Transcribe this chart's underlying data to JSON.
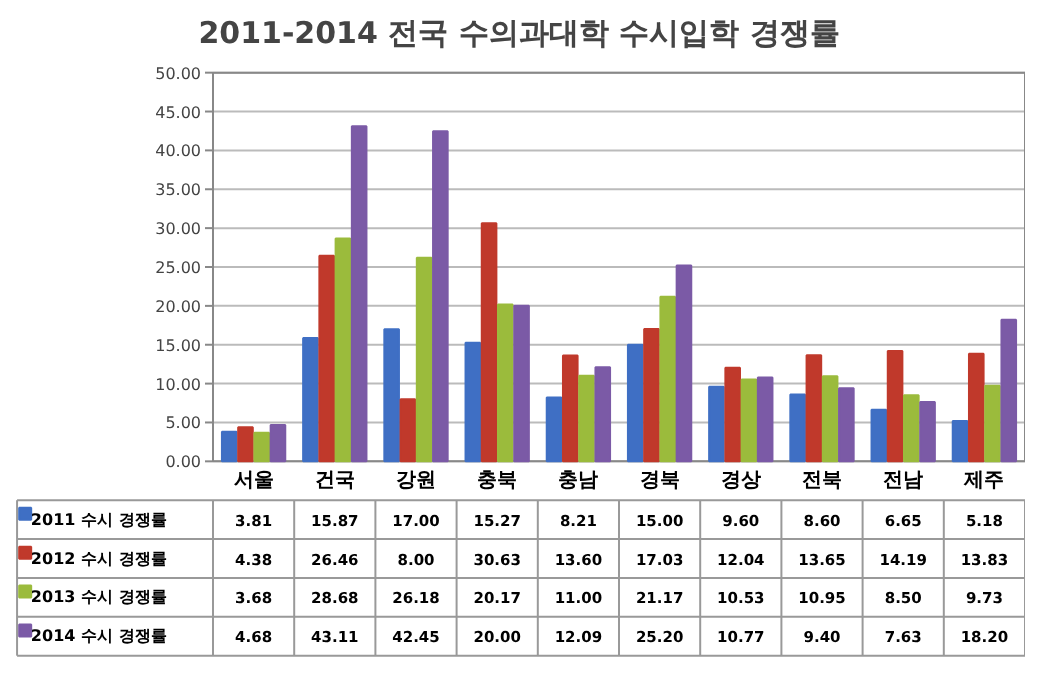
{
  "chart_data": {
    "type": "bar",
    "title": "2011-2014 전국 수의과대학 수시입학 경쟁률",
    "categories": [
      "서울",
      "건국",
      "강원",
      "충북",
      "충남",
      "경북",
      "경상",
      "전북",
      "전남",
      "제주"
    ],
    "series": [
      {
        "name": "2011 수시 경쟁률",
        "color": "#3f6fc4",
        "values": [
          3.81,
          15.87,
          17.0,
          15.27,
          8.21,
          15.0,
          9.6,
          8.6,
          6.65,
          5.18
        ],
        "value_labels": [
          "3.81",
          "15.87",
          "17.00",
          "15.27",
          "8.21",
          "15.00",
          "9.60",
          "8.60",
          "6.65",
          "5.18"
        ]
      },
      {
        "name": "2012 수시 경쟁률",
        "color": "#c0392b",
        "values": [
          4.38,
          26.46,
          8.0,
          30.63,
          13.6,
          17.03,
          12.04,
          13.65,
          14.19,
          13.83
        ],
        "value_labels": [
          "4.38",
          "26.46",
          "8.00",
          "30.63",
          "13.60",
          "17.03",
          "12.04",
          "13.65",
          "14.19",
          "13.83"
        ]
      },
      {
        "name": "2013 수시 경쟁률",
        "color": "#9bbb3c",
        "values": [
          3.68,
          28.68,
          26.18,
          20.17,
          11.0,
          21.17,
          10.53,
          10.95,
          8.5,
          9.73
        ],
        "value_labels": [
          "3.68",
          "28.68",
          "26.18",
          "20.17",
          "11.00",
          "21.17",
          "10.53",
          "10.95",
          "8.50",
          "9.73"
        ]
      },
      {
        "name": "2014 수시 경쟁률",
        "color": "#7b5aa6",
        "values": [
          4.68,
          43.11,
          42.45,
          20.0,
          12.09,
          25.2,
          10.77,
          9.4,
          7.63,
          18.2
        ],
        "value_labels": [
          "4.68",
          "43.11",
          "42.45",
          "20.00",
          "12.09",
          "25.20",
          "10.77",
          "9.40",
          "7.63",
          "18.20"
        ]
      }
    ],
    "ylim": [
      0,
      50
    ],
    "yticks": [
      {
        "value": 0,
        "label": "0.00"
      },
      {
        "value": 5,
        "label": "5.00"
      },
      {
        "value": 10,
        "label": "10.00"
      },
      {
        "value": 15,
        "label": "15.00"
      },
      {
        "value": 20,
        "label": "20.00"
      },
      {
        "value": 25,
        "label": "25.00"
      },
      {
        "value": 30,
        "label": "30.00"
      },
      {
        "value": 35,
        "label": "35.00"
      },
      {
        "value": 40,
        "label": "40.00"
      },
      {
        "value": 45,
        "label": "45.00"
      },
      {
        "value": 50,
        "label": "50.00"
      }
    ],
    "grid": "y",
    "legend": "bottom"
  }
}
